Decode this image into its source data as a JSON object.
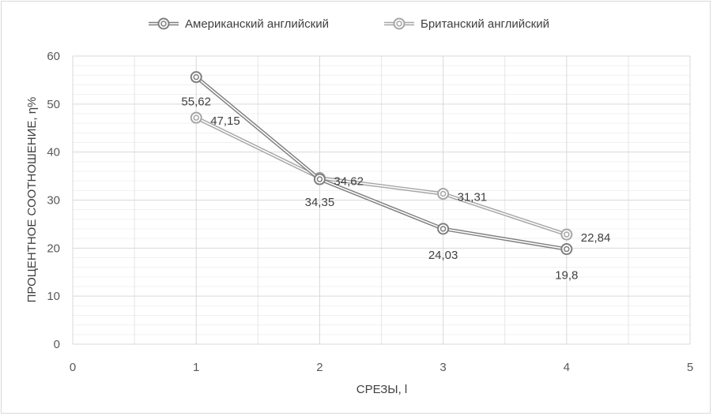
{
  "chart_data": {
    "type": "line",
    "xlabel": "СРЕЗЫ, l",
    "ylabel": "ПРОЦЕНТНОЕ СООТНОШЕНИЕ, η%",
    "xlim": [
      0,
      5
    ],
    "ylim": [
      0,
      60
    ],
    "x_ticks": [
      "0",
      "1",
      "2",
      "3",
      "4",
      "5"
    ],
    "y_ticks": [
      "0",
      "10",
      "20",
      "30",
      "40",
      "50",
      "60"
    ],
    "grid": true,
    "legend_position": "top",
    "x": [
      1,
      2,
      3,
      4
    ],
    "series": [
      {
        "name": "Американский английский",
        "values": [
          55.62,
          34.35,
          24.03,
          19.8
        ],
        "labels": [
          "55,62",
          "34,35",
          "24,03",
          "19,8"
        ],
        "color": "#7f7f7f"
      },
      {
        "name": "Британский английский",
        "values": [
          47.15,
          34.62,
          31.31,
          22.84
        ],
        "labels": [
          "47,15",
          "34,62",
          "31,31",
          "22,84"
        ],
        "color": "#a6a6a6"
      }
    ]
  }
}
